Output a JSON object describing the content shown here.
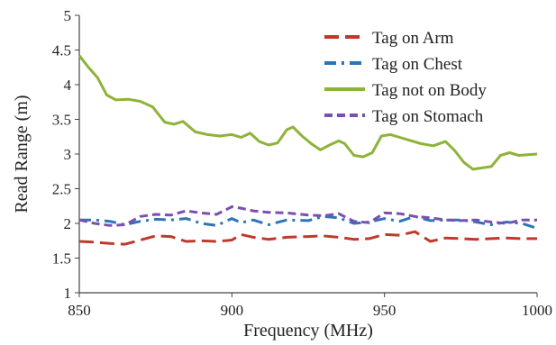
{
  "chart_data": {
    "type": "line",
    "title": "",
    "xlabel": "Frequency (MHz)",
    "ylabel": "Read Range (m)",
    "xlim": [
      850,
      1000
    ],
    "ylim": [
      1,
      5
    ],
    "x_ticks": [
      "850",
      "900",
      "950",
      "1000"
    ],
    "y_ticks": [
      "1",
      "1.5",
      "2",
      "2.5",
      "3",
      "3.5",
      "4",
      "4.5",
      "5"
    ],
    "grid": false,
    "legend_position": "top-right",
    "series": [
      {
        "name": "Tag on Arm",
        "color": "#c0392b",
        "dash": "long-dash",
        "points": [
          [
            850,
            1.74
          ],
          [
            855,
            1.73
          ],
          [
            860,
            1.71
          ],
          [
            865,
            1.7
          ],
          [
            870,
            1.76
          ],
          [
            875,
            1.82
          ],
          [
            880,
            1.81
          ],
          [
            885,
            1.74
          ],
          [
            890,
            1.75
          ],
          [
            895,
            1.74
          ],
          [
            900,
            1.76
          ],
          [
            903,
            1.84
          ],
          [
            907,
            1.8
          ],
          [
            912,
            1.77
          ],
          [
            918,
            1.8
          ],
          [
            925,
            1.81
          ],
          [
            930,
            1.82
          ],
          [
            935,
            1.8
          ],
          [
            940,
            1.77
          ],
          [
            945,
            1.78
          ],
          [
            950,
            1.84
          ],
          [
            955,
            1.83
          ],
          [
            960,
            1.88
          ],
          [
            965,
            1.74
          ],
          [
            970,
            1.79
          ],
          [
            975,
            1.78
          ],
          [
            980,
            1.77
          ],
          [
            985,
            1.78
          ],
          [
            990,
            1.79
          ],
          [
            995,
            1.78
          ],
          [
            1000,
            1.78
          ]
        ]
      },
      {
        "name": "Tag on Chest",
        "color": "#2e75b6",
        "dash": "dash-dot",
        "points": [
          [
            850,
            2.05
          ],
          [
            855,
            2.05
          ],
          [
            860,
            2.03
          ],
          [
            865,
            1.98
          ],
          [
            870,
            2.03
          ],
          [
            875,
            2.06
          ],
          [
            880,
            2.05
          ],
          [
            885,
            2.07
          ],
          [
            890,
            2.0
          ],
          [
            895,
            1.97
          ],
          [
            900,
            2.07
          ],
          [
            903,
            2.01
          ],
          [
            907,
            2.05
          ],
          [
            912,
            1.98
          ],
          [
            918,
            2.05
          ],
          [
            925,
            2.04
          ],
          [
            930,
            2.1
          ],
          [
            935,
            2.08
          ],
          [
            940,
            2.0
          ],
          [
            945,
            2.02
          ],
          [
            950,
            2.07
          ],
          [
            955,
            2.03
          ],
          [
            960,
            2.1
          ],
          [
            965,
            2.04
          ],
          [
            970,
            2.05
          ],
          [
            975,
            2.05
          ],
          [
            980,
            2.02
          ],
          [
            985,
            1.98
          ],
          [
            990,
            2.02
          ],
          [
            995,
            2.0
          ],
          [
            1000,
            1.93
          ]
        ]
      },
      {
        "name": "Tag not on Body",
        "color": "#8db33a",
        "dash": "solid",
        "points": [
          [
            850,
            4.42
          ],
          [
            853,
            4.25
          ],
          [
            856,
            4.1
          ],
          [
            859,
            3.85
          ],
          [
            862,
            3.78
          ],
          [
            866,
            3.79
          ],
          [
            870,
            3.76
          ],
          [
            874,
            3.68
          ],
          [
            878,
            3.46
          ],
          [
            881,
            3.43
          ],
          [
            884,
            3.47
          ],
          [
            888,
            3.32
          ],
          [
            892,
            3.28
          ],
          [
            896,
            3.26
          ],
          [
            900,
            3.28
          ],
          [
            903,
            3.24
          ],
          [
            906,
            3.3
          ],
          [
            909,
            3.18
          ],
          [
            912,
            3.13
          ],
          [
            915,
            3.16
          ],
          [
            918,
            3.35
          ],
          [
            920,
            3.39
          ],
          [
            923,
            3.26
          ],
          [
            926,
            3.15
          ],
          [
            929,
            3.06
          ],
          [
            932,
            3.13
          ],
          [
            935,
            3.19
          ],
          [
            937,
            3.15
          ],
          [
            940,
            2.98
          ],
          [
            943,
            2.96
          ],
          [
            946,
            3.02
          ],
          [
            949,
            3.26
          ],
          [
            952,
            3.28
          ],
          [
            955,
            3.24
          ],
          [
            958,
            3.2
          ],
          [
            962,
            3.15
          ],
          [
            966,
            3.12
          ],
          [
            970,
            3.18
          ],
          [
            973,
            3.05
          ],
          [
            976,
            2.88
          ],
          [
            979,
            2.78
          ],
          [
            982,
            2.8
          ],
          [
            985,
            2.82
          ],
          [
            988,
            2.98
          ],
          [
            991,
            3.02
          ],
          [
            994,
            2.98
          ],
          [
            997,
            2.99
          ],
          [
            1000,
            3.0
          ]
        ]
      },
      {
        "name": "Tag on Stomach",
        "color": "#7b4fb0",
        "dash": "dash",
        "points": [
          [
            850,
            2.05
          ],
          [
            855,
            2.0
          ],
          [
            860,
            1.97
          ],
          [
            865,
            1.98
          ],
          [
            870,
            2.1
          ],
          [
            875,
            2.13
          ],
          [
            880,
            2.12
          ],
          [
            885,
            2.18
          ],
          [
            890,
            2.15
          ],
          [
            895,
            2.13
          ],
          [
            900,
            2.24
          ],
          [
            903,
            2.22
          ],
          [
            907,
            2.18
          ],
          [
            912,
            2.16
          ],
          [
            918,
            2.15
          ],
          [
            925,
            2.12
          ],
          [
            930,
            2.11
          ],
          [
            935,
            2.14
          ],
          [
            940,
            2.03
          ],
          [
            945,
            2.01
          ],
          [
            950,
            2.15
          ],
          [
            955,
            2.14
          ],
          [
            960,
            2.1
          ],
          [
            965,
            2.08
          ],
          [
            970,
            2.05
          ],
          [
            975,
            2.04
          ],
          [
            980,
            2.05
          ],
          [
            985,
            2.02
          ],
          [
            990,
            2.0
          ],
          [
            995,
            2.05
          ],
          [
            1000,
            2.05
          ]
        ]
      }
    ]
  }
}
